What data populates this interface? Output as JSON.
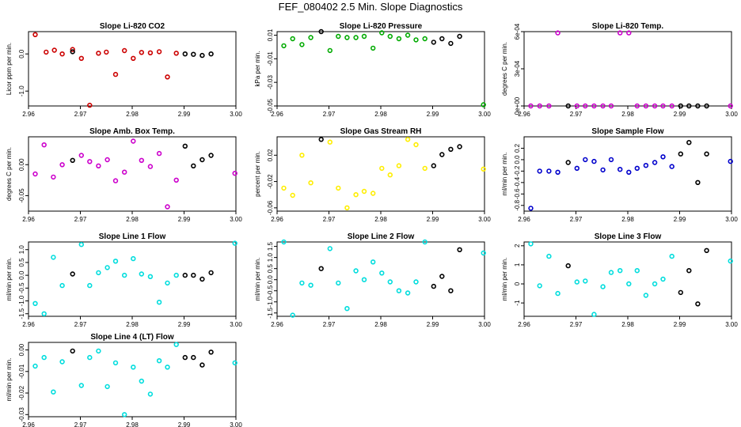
{
  "page": {
    "title": "FEF_080402  2.5 Min. Slope Diagnostics"
  },
  "chart_data": [
    {
      "type": "scatter",
      "title": "Slope Li-820 CO2",
      "ylabel": "Licor ppm per min.",
      "color": "#cc0000",
      "xlim": [
        2.96,
        3.0
      ],
      "ylim": [
        -1.4,
        0.6
      ],
      "xticks": [
        "2.96",
        "2.97",
        "2.98",
        "2.99",
        "3.00"
      ],
      "yticks": [
        -1.0,
        0.0
      ],
      "yticklabels": [
        "-1.0",
        "0.0"
      ],
      "series": [
        {
          "name": "colored",
          "color": "#cc0000",
          "x": [
            2.9613,
            2.9634,
            2.965,
            2.9665,
            2.9685,
            2.9702,
            2.9718,
            2.9735,
            2.975,
            2.9768,
            2.9785,
            2.9802,
            2.9818,
            2.9835,
            2.9852,
            2.9868,
            2.9885
          ],
          "y": [
            0.52,
            0.05,
            0.1,
            0.0,
            0.12,
            -0.12,
            -1.38,
            0.02,
            0.05,
            -0.55,
            0.09,
            -0.12,
            0.04,
            0.03,
            0.06,
            -0.62,
            0.02
          ]
        },
        {
          "name": "black",
          "color": "#000000",
          "x": [
            2.9685,
            2.9902,
            2.9918,
            2.9935,
            2.9952
          ],
          "y": [
            0.06,
            0.0,
            -0.01,
            -0.04,
            0.0
          ]
        }
      ]
    },
    {
      "type": "scatter",
      "title": "Slope Li-820 Pressure",
      "ylabel": "kPa per min.",
      "color": "#00aa00",
      "xlim": [
        2.96,
        3.0
      ],
      "ylim": [
        -0.05,
        0.013
      ],
      "xticks": [
        "2.96",
        "2.97",
        "2.98",
        "2.99",
        "3.00"
      ],
      "yticks": [
        -0.05,
        -0.03,
        -0.01,
        0.01
      ],
      "yticklabels": [
        "-0.05",
        "-0.03",
        "-0.01",
        "0.01"
      ],
      "series": [
        {
          "name": "colored",
          "color": "#00aa00",
          "x": [
            2.9613,
            2.963,
            2.9648,
            2.9665,
            2.9702,
            2.9718,
            2.9735,
            2.9752,
            2.9768,
            2.9785,
            2.9802,
            2.9818,
            2.9835,
            2.9852,
            2.9868,
            2.9885,
            2.9998
          ],
          "y": [
            0.001,
            0.007,
            0.002,
            0.008,
            -0.003,
            0.009,
            0.008,
            0.008,
            0.009,
            -0.001,
            0.012,
            0.009,
            0.007,
            0.01,
            0.006,
            0.007,
            -0.049
          ]
        },
        {
          "name": "black",
          "color": "#000000",
          "x": [
            2.9685,
            2.9902,
            2.9918,
            2.9935,
            2.9952
          ],
          "y": [
            0.013,
            0.004,
            0.007,
            0.003,
            0.009
          ]
        }
      ]
    },
    {
      "type": "scatter",
      "title": "Slope Li-820 Temp.",
      "ylabel": "degrees C per min.",
      "color": "#cc00cc",
      "xlim": [
        2.96,
        3.0
      ],
      "ylim": [
        0,
        0.0006
      ],
      "xticks": [
        "2.96",
        "2.97",
        "2.98",
        "2.99",
        "3.00"
      ],
      "yticks": [
        0,
        0.0003,
        0.0006
      ],
      "yticklabels": [
        "0e+00",
        "3e-04",
        "6e-04"
      ],
      "series": [
        {
          "name": "colored",
          "color": "#cc00cc",
          "x": [
            2.9613,
            2.963,
            2.9648,
            2.9665,
            2.9702,
            2.9718,
            2.9735,
            2.9752,
            2.9768,
            2.9785,
            2.9802,
            2.9818,
            2.9835,
            2.9852,
            2.9868,
            2.9885,
            2.9998
          ],
          "y": [
            0,
            0,
            0,
            0.00059,
            0,
            0,
            0,
            0,
            0,
            0.00059,
            0.00059,
            0,
            0,
            0,
            0,
            0,
            0
          ]
        },
        {
          "name": "black",
          "color": "#000000",
          "x": [
            2.9685,
            2.9902,
            2.9918,
            2.9935,
            2.9952
          ],
          "y": [
            0,
            0,
            0,
            0,
            0
          ]
        }
      ]
    },
    {
      "type": "scatter",
      "title": "Slope Amb. Box Temp.",
      "ylabel": "degrees C per min.",
      "color": "#cc00cc",
      "xlim": [
        2.96,
        3.0
      ],
      "ylim": [
        -0.075,
        0.045
      ],
      "xticks": [
        "2.96",
        "2.97",
        "2.98",
        "2.99",
        "3.00"
      ],
      "yticks": [
        -0.05,
        0.0
      ],
      "yticklabels": [
        "-0.05",
        "0.00"
      ],
      "series": [
        {
          "name": "colored",
          "color": "#cc00cc",
          "x": [
            2.9613,
            2.963,
            2.9648,
            2.9665,
            2.9702,
            2.9718,
            2.9735,
            2.9752,
            2.9768,
            2.9785,
            2.9802,
            2.9818,
            2.9835,
            2.9852,
            2.9868,
            2.9885,
            2.9998
          ],
          "y": [
            -0.015,
            0.032,
            -0.02,
            0.0,
            0.015,
            0.005,
            -0.002,
            0.008,
            -0.026,
            -0.012,
            0.038,
            0.007,
            -0.003,
            0.018,
            -0.068,
            -0.025,
            -0.014
          ]
        },
        {
          "name": "black",
          "color": "#000000",
          "x": [
            2.9685,
            2.9902,
            2.9918,
            2.9935,
            2.9952
          ],
          "y": [
            0.007,
            0.03,
            -0.002,
            0.008,
            0.015
          ]
        }
      ]
    },
    {
      "type": "scatter",
      "title": "Slope Gas Stream RH",
      "ylabel": "percent per min.",
      "color": "#ffee00",
      "xlim": [
        2.96,
        3.0
      ],
      "ylim": [
        -0.065,
        0.048
      ],
      "xticks": [
        "2.96",
        "2.97",
        "2.98",
        "2.99",
        "3.00"
      ],
      "yticks": [
        -0.06,
        -0.02,
        0.02
      ],
      "yticklabels": [
        "-0.06",
        "-0.02",
        "0.02"
      ],
      "series": [
        {
          "name": "colored",
          "color": "#ffee00",
          "x": [
            2.9613,
            2.963,
            2.9648,
            2.9665,
            2.9702,
            2.9718,
            2.9735,
            2.9752,
            2.9768,
            2.9785,
            2.9802,
            2.9818,
            2.9835,
            2.9852,
            2.9868,
            2.9885,
            2.9998
          ],
          "y": [
            -0.03,
            -0.041,
            0.02,
            -0.022,
            0.04,
            -0.03,
            -0.06,
            -0.04,
            -0.035,
            -0.038,
            0.0,
            -0.01,
            0.004,
            0.044,
            0.036,
            0.0,
            -0.001
          ]
        },
        {
          "name": "black",
          "color": "#000000",
          "x": [
            2.9685,
            2.9902,
            2.9918,
            2.9935,
            2.9952
          ],
          "y": [
            0.044,
            0.004,
            0.021,
            0.029,
            0.033
          ]
        }
      ]
    },
    {
      "type": "scatter",
      "title": "Slope Sample Flow",
      "ylabel": "ml/min per min.",
      "color": "#0000cc",
      "xlim": [
        2.96,
        3.0
      ],
      "ylim": [
        -0.9,
        0.4
      ],
      "xticks": [
        "2.96",
        "2.97",
        "2.98",
        "2.99",
        "3.00"
      ],
      "yticks": [
        -0.8,
        -0.6,
        -0.4,
        -0.2,
        0.0,
        0.2
      ],
      "yticklabels": [
        "-0.8",
        "-0.6",
        "-0.4",
        "-0.2",
        "0.0",
        "0.2"
      ],
      "series": [
        {
          "name": "colored",
          "color": "#0000cc",
          "x": [
            2.9613,
            2.963,
            2.9648,
            2.9665,
            2.9702,
            2.9718,
            2.9735,
            2.9752,
            2.9768,
            2.9785,
            2.9802,
            2.9818,
            2.9835,
            2.9852,
            2.9868,
            2.9885,
            2.9998
          ],
          "y": [
            -0.85,
            -0.2,
            -0.2,
            -0.22,
            -0.15,
            0.0,
            -0.03,
            -0.18,
            0.0,
            -0.17,
            -0.22,
            -0.15,
            -0.1,
            -0.05,
            0.05,
            -0.12,
            -0.03
          ]
        },
        {
          "name": "black",
          "color": "#000000",
          "x": [
            2.9685,
            2.9902,
            2.9918,
            2.9935,
            2.9952
          ],
          "y": [
            -0.05,
            0.1,
            0.3,
            -0.4,
            0.1
          ]
        }
      ]
    },
    {
      "type": "scatter",
      "title": "Slope Line 1 Flow",
      "ylabel": "ml/min per min.",
      "color": "#00dddd",
      "xlim": [
        2.96,
        3.0
      ],
      "ylim": [
        -1.6,
        1.3
      ],
      "xticks": [
        "2.96",
        "2.97",
        "2.98",
        "2.99",
        "3.00"
      ],
      "yticks": [
        -1.5,
        -1.0,
        -0.5,
        0.0,
        0.5,
        1.0
      ],
      "yticklabels": [
        "-1.5",
        "-1.0",
        "-0.5",
        "0.0",
        "0.5",
        "1.0"
      ],
      "series": [
        {
          "name": "colored",
          "color": "#00dddd",
          "x": [
            2.9613,
            2.963,
            2.9648,
            2.9665,
            2.9702,
            2.9718,
            2.9735,
            2.9752,
            2.9768,
            2.9785,
            2.9802,
            2.9818,
            2.9835,
            2.9852,
            2.9868,
            2.9885,
            2.9998
          ],
          "y": [
            -1.1,
            -1.5,
            0.7,
            -0.4,
            1.2,
            -0.4,
            0.1,
            0.3,
            0.55,
            0.0,
            0.65,
            0.05,
            -0.05,
            -1.05,
            -0.3,
            0.0,
            1.25
          ]
        },
        {
          "name": "black",
          "color": "#000000",
          "x": [
            2.9685,
            2.9902,
            2.9918,
            2.9935,
            2.9952
          ],
          "y": [
            0.05,
            0.0,
            0.0,
            -0.15,
            0.1
          ]
        }
      ]
    },
    {
      "type": "scatter",
      "title": "Slope Line 2 Flow",
      "ylabel": "ml/min per min.",
      "color": "#00dddd",
      "xlim": [
        2.96,
        3.0
      ],
      "ylim": [
        -1.65,
        1.7
      ],
      "xticks": [
        "2.96",
        "2.97",
        "2.98",
        "2.99",
        "3.00"
      ],
      "yticks": [
        -1.5,
        -1.0,
        -0.5,
        0.0,
        0.5,
        1.0,
        1.5
      ],
      "yticklabels": [
        "-1.5",
        "-1.0",
        "-0.5",
        "0.0",
        "0.5",
        "1.0",
        "1.5"
      ],
      "series": [
        {
          "name": "colored",
          "color": "#00dddd",
          "x": [
            2.9613,
            2.963,
            2.9648,
            2.9665,
            2.9702,
            2.9718,
            2.9735,
            2.9752,
            2.9768,
            2.9785,
            2.9802,
            2.9818,
            2.9835,
            2.9852,
            2.9868,
            2.9885,
            2.9998
          ],
          "y": [
            1.7,
            -1.6,
            -0.15,
            -0.25,
            1.4,
            -0.15,
            -1.3,
            0.4,
            0.0,
            0.8,
            0.3,
            -0.1,
            -0.5,
            -0.6,
            -0.1,
            1.7,
            1.2
          ]
        },
        {
          "name": "black",
          "color": "#000000",
          "x": [
            2.9685,
            2.9902,
            2.9918,
            2.9935,
            2.9952
          ],
          "y": [
            0.5,
            -0.3,
            0.15,
            -0.5,
            1.35
          ]
        }
      ]
    },
    {
      "type": "scatter",
      "title": "Slope Line 3 Flow",
      "ylabel": "ml/min per min.",
      "color": "#00dddd",
      "xlim": [
        2.96,
        3.0
      ],
      "ylim": [
        -1.7,
        2.2
      ],
      "xticks": [
        "2.96",
        "2.97",
        "2.98",
        "2.99",
        "3.00"
      ],
      "yticks": [
        -1,
        0,
        1,
        2
      ],
      "yticklabels": [
        "-1",
        "0",
        "1",
        "2"
      ],
      "series": [
        {
          "name": "colored",
          "color": "#00dddd",
          "x": [
            2.9613,
            2.963,
            2.9648,
            2.9665,
            2.9702,
            2.9718,
            2.9735,
            2.9752,
            2.9768,
            2.9785,
            2.9802,
            2.9818,
            2.9835,
            2.9852,
            2.9868,
            2.9885,
            2.9998
          ],
          "y": [
            2.1,
            -0.1,
            1.45,
            -0.5,
            0.1,
            0.15,
            -1.6,
            -0.15,
            0.6,
            0.7,
            0.0,
            0.7,
            -0.6,
            0.0,
            0.25,
            1.45,
            1.2
          ]
        },
        {
          "name": "black",
          "color": "#000000",
          "x": [
            2.9685,
            2.9902,
            2.9918,
            2.9935,
            2.9952
          ],
          "y": [
            0.95,
            -0.45,
            0.7,
            -1.05,
            1.75
          ]
        }
      ]
    },
    {
      "type": "scatter",
      "title": "Slope Line 4 (LT) Flow",
      "ylabel": "ml/min per min.",
      "color": "#00dddd",
      "xlim": [
        2.96,
        3.0
      ],
      "ylim": [
        -0.031,
        0.0035
      ],
      "xticks": [
        "2.96",
        "2.97",
        "2.98",
        "2.99",
        "3.00"
      ],
      "yticks": [
        -0.03,
        -0.02,
        -0.01,
        0.0
      ],
      "yticklabels": [
        "-0.03",
        "-0.02",
        "-0.01",
        "0.00"
      ],
      "series": [
        {
          "name": "colored",
          "color": "#00dddd",
          "x": [
            2.9613,
            2.963,
            2.9648,
            2.9665,
            2.9702,
            2.9718,
            2.9735,
            2.9752,
            2.9768,
            2.9785,
            2.9802,
            2.9818,
            2.9835,
            2.9852,
            2.9868,
            2.9885,
            2.9998
          ],
          "y": [
            -0.0075,
            -0.0035,
            -0.0195,
            -0.0055,
            -0.0165,
            -0.0035,
            -0.0005,
            -0.017,
            -0.006,
            -0.03,
            -0.008,
            -0.0145,
            -0.0205,
            -0.005,
            -0.008,
            0.0025,
            -0.006
          ]
        },
        {
          "name": "black",
          "color": "#000000",
          "x": [
            2.9685,
            2.9902,
            2.9918,
            2.9935,
            2.9952
          ],
          "y": [
            -0.0005,
            -0.0035,
            -0.0035,
            -0.007,
            -0.001
          ]
        }
      ]
    }
  ]
}
